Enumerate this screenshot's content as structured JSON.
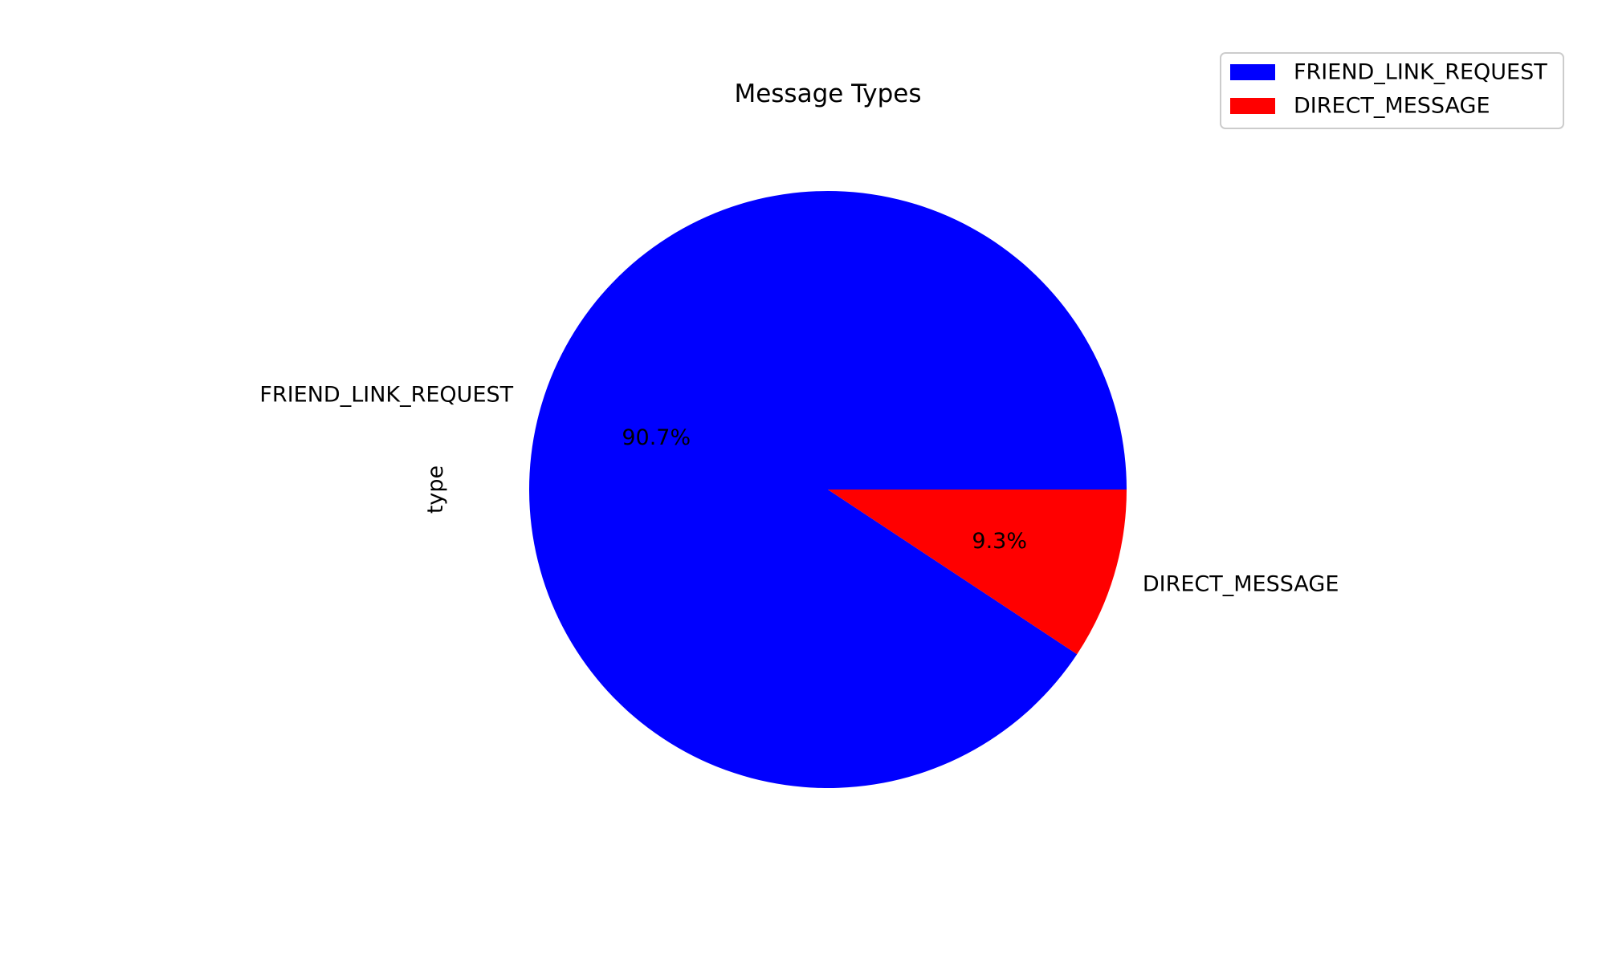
{
  "chart_data": {
    "type": "pie",
    "title": "Message Types",
    "ylabel": "type",
    "labels": [
      "FRIEND_LINK_REQUEST",
      "DIRECT_MESSAGE"
    ],
    "values": [
      90.7,
      9.3
    ],
    "pct_labels": [
      "90.7%",
      "9.3%"
    ],
    "colors": [
      "#0000ff",
      "#ff0000"
    ],
    "start_angle_deg": 0,
    "direction": "counterclockwise",
    "legend": {
      "position": "top-right",
      "entries": [
        "FRIEND_LINK_REQUEST",
        "DIRECT_MESSAGE"
      ]
    }
  }
}
